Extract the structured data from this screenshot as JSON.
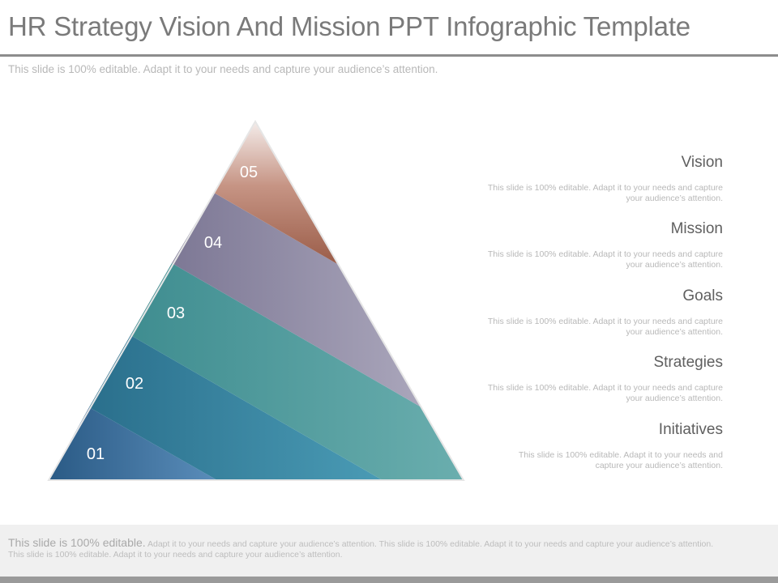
{
  "slide": {
    "title": "HR Strategy Vision And Mission PPT Infographic Template",
    "subtitle": "This slide is 100% editable. Adapt it to your needs and capture your audience’s attention."
  },
  "pyramid": {
    "layers": [
      {
        "number": "01",
        "color": "#3f75a0"
      },
      {
        "number": "02",
        "color": "#2f7c98"
      },
      {
        "number": "03",
        "color": "#4f9a9c"
      },
      {
        "number": "04",
        "color": "#8e8aa3"
      },
      {
        "number": "05",
        "color": "#a56a58"
      }
    ]
  },
  "items": [
    {
      "heading": "Vision",
      "description": "This slide is 100% editable. Adapt it to your needs and capture your audience’s attention."
    },
    {
      "heading": "Mission",
      "description": "This slide is 100% editable. Adapt it to your needs and capture your audience’s attention."
    },
    {
      "heading": "Goals",
      "description": "This slide is 100% editable. Adapt it to your needs and capture your audience’s attention."
    },
    {
      "heading": "Strategies",
      "description": "This slide is 100% editable. Adapt it to your needs and capture your audience’s attention."
    },
    {
      "heading": "Initiatives",
      "description": "This slide is 100% editable. Adapt it to your needs and capture your audience’s attention."
    }
  ],
  "footer": {
    "lead": "This slide is 100% editable.",
    "text": "Adapt it to your needs and capture your audience’s attention. This slide is 100% editable. Adapt it to your needs and capture your audience’s attention. This slide is 100% editable. Adapt it to your needs and capture your audience’s attention."
  }
}
